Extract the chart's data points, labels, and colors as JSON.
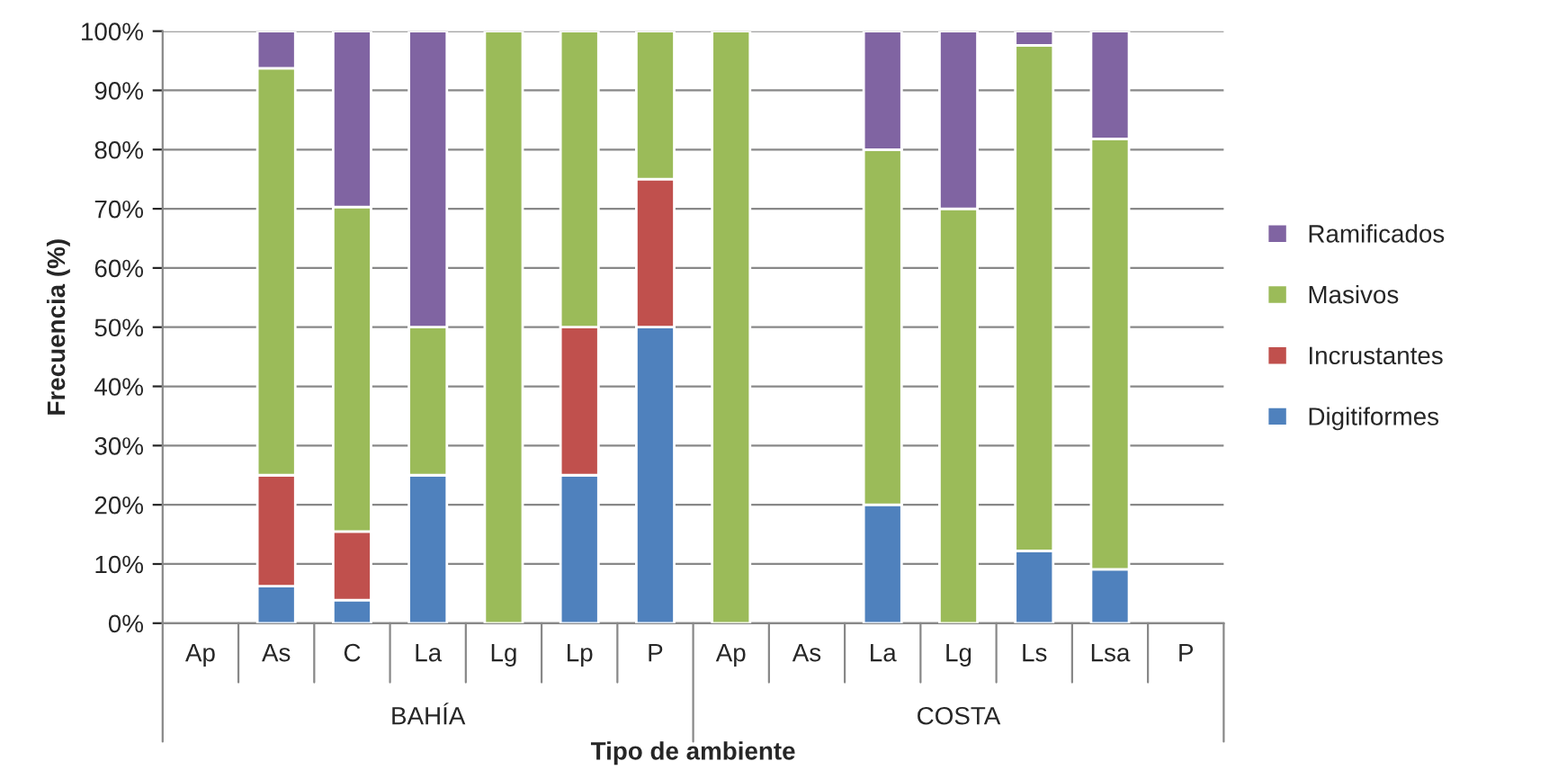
{
  "chart_data": {
    "type": "bar",
    "stacked": true,
    "xlabel": "Tipo de ambiente",
    "ylabel": "Frecuencia (%)",
    "categories": [
      "Ap",
      "As",
      "C",
      "La",
      "Lg",
      "Lp",
      "P",
      "Ap",
      "As",
      "La",
      "Lg",
      "Ls",
      "Lsa",
      "P"
    ],
    "annotations": [
      "BAHÍA",
      "COSTA"
    ],
    "series": [
      {
        "name": "Digitiformes",
        "color": "#4f81bd",
        "values": [
          null,
          6.25,
          3.9,
          25,
          null,
          25,
          50,
          null,
          null,
          20,
          null,
          12.2,
          9.1,
          null
        ]
      },
      {
        "name": "Incrustantes",
        "color": "#c0504d",
        "values": [
          null,
          18.75,
          11.6,
          null,
          null,
          25,
          25,
          null,
          null,
          null,
          null,
          null,
          null,
          null
        ]
      },
      {
        "name": "Masivos",
        "color": "#9bbb59",
        "values": [
          null,
          68.75,
          54.8,
          25,
          100,
          50,
          25,
          100,
          null,
          60,
          70,
          85.4,
          72.7,
          null
        ]
      },
      {
        "name": "Ramificados",
        "color": "#8064a2",
        "values": [
          null,
          6.25,
          29.7,
          50,
          null,
          null,
          null,
          null,
          null,
          20,
          30,
          2.4,
          18.2,
          null
        ]
      }
    ],
    "ylim": [
      0,
      100
    ],
    "yticks": [
      {
        "value": 0,
        "label": "0%"
      },
      {
        "value": 10,
        "label": "10%"
      },
      {
        "value": 20,
        "label": "20%"
      },
      {
        "value": 30,
        "label": "30%"
      },
      {
        "value": 40,
        "label": "40%"
      },
      {
        "value": 50,
        "label": "50%"
      },
      {
        "value": 60,
        "label": "60%"
      },
      {
        "value": 70,
        "label": "70%"
      },
      {
        "value": 80,
        "label": "80%"
      },
      {
        "value": 90,
        "label": "90%"
      },
      {
        "value": 100,
        "label": "100%"
      }
    ],
    "grid": "y",
    "legend": "right"
  }
}
